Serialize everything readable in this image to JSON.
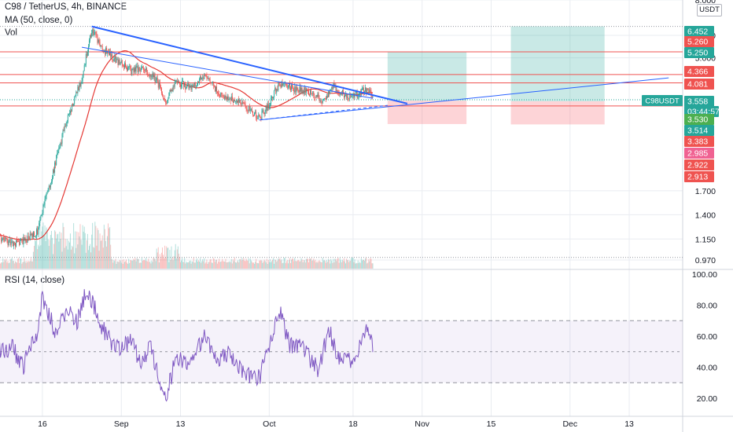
{
  "header": {
    "title": "C98 / TetherUS, 4h, BINANCE",
    "ma_label": "MA (50, close, 0)",
    "vol_label": "Vol",
    "currency_button": "USDT"
  },
  "rsi_header": {
    "label": "RSI (14, close)"
  },
  "colors": {
    "up": "#26a69a",
    "down": "#ef5350",
    "ma": "#e53935",
    "rsi": "#7e57c2",
    "trend": "#2962ff",
    "target_zone": "#26a69a",
    "stop_zone": "#f7525f",
    "grid": "#e9ecf1",
    "axis_text": "#131722"
  },
  "x_axis": {
    "labels": [
      "16",
      "Sep",
      "13",
      "Oct",
      "18",
      "Nov",
      "15",
      "Dec",
      "13"
    ]
  },
  "price_axis": {
    "ticks": [
      "8.000",
      "6.000",
      "5.000",
      "1.700",
      "1.400",
      "1.150",
      "0.970"
    ],
    "badges": [
      {
        "text": "6.452",
        "color": "#26a69a"
      },
      {
        "text": "5.260",
        "color": "#ef5350"
      },
      {
        "text": "5.250",
        "color": "#26a69a"
      },
      {
        "text": "4.366",
        "color": "#ef5350"
      },
      {
        "text": "4.081",
        "color": "#ef5350"
      },
      {
        "text": "3.558",
        "color": "#26a69a"
      },
      {
        "text": "03:44:57",
        "color": "#ffffff"
      },
      {
        "text": "3.530",
        "color": "#4caf50"
      },
      {
        "text": "3.514",
        "color": "#26a69a"
      },
      {
        "text": "3.383",
        "color": "#ef5350"
      },
      {
        "text": "2.985",
        "color": "#f06292"
      },
      {
        "text": "2.922",
        "color": "#ef5350"
      },
      {
        "text": "2.913",
        "color": "#ef5350"
      }
    ],
    "symbol_tag": "C98USDT"
  },
  "rsi_axis": {
    "ticks": [
      "100.00",
      "80.00",
      "60.00",
      "40.00",
      "20.00"
    ]
  },
  "chart_data": [
    {
      "type": "candlestick",
      "title": "C98 / TetherUS, 4h, BINANCE",
      "scale": "log",
      "ylim": [
        0.95,
        8.0
      ],
      "x_range": [
        "Aug 6",
        "Dec 21"
      ],
      "last_price": 3.558,
      "countdown": "03:44:57",
      "anchors": [
        [
          "Aug 6",
          1.2
        ],
        [
          "Aug 10",
          1.1
        ],
        [
          "Aug 13",
          1.15
        ],
        [
          "Aug 15",
          1.22
        ],
        [
          "Aug 18",
          1.9
        ],
        [
          "Aug 21",
          3.0
        ],
        [
          "Aug 24",
          4.2
        ],
        [
          "Aug 25",
          5.2
        ],
        [
          "Aug 26",
          6.3
        ],
        [
          "Aug 28",
          5.4
        ],
        [
          "Aug 31",
          4.9
        ],
        [
          "Sep 3",
          4.5
        ],
        [
          "Sep 5",
          4.6
        ],
        [
          "Sep 8",
          4.2
        ],
        [
          "Sep 10",
          3.5
        ],
        [
          "Sep 12",
          4.1
        ],
        [
          "Sep 15",
          3.95
        ],
        [
          "Sep 18",
          4.3
        ],
        [
          "Sep 21",
          3.7
        ],
        [
          "Sep 24",
          3.55
        ],
        [
          "Sep 27",
          3.3
        ],
        [
          "Sep 29",
          3.05
        ],
        [
          "Oct 1",
          3.45
        ],
        [
          "Oct 3",
          4.05
        ],
        [
          "Oct 6",
          3.9
        ],
        [
          "Oct 9",
          3.8
        ],
        [
          "Oct 12",
          3.55
        ],
        [
          "Oct 14",
          3.95
        ],
        [
          "Oct 17",
          3.65
        ],
        [
          "Oct 19",
          3.7
        ],
        [
          "Oct 21",
          3.9
        ],
        [
          "Oct 22",
          3.558
        ]
      ],
      "indicators": {
        "ma_period": 50,
        "ma_source": "close"
      },
      "horizontal_levels": [
        6.452,
        5.25,
        4.366,
        4.081,
        3.383
      ],
      "trendlines": [
        {
          "from": [
            "Aug 26",
            6.45
          ],
          "to": [
            "Oct 29",
            3.45
          ]
        },
        {
          "from": [
            "Aug 24",
            5.45
          ],
          "to": [
            "Oct 22",
            3.6
          ]
        },
        {
          "from": [
            "Sep 29",
            3.02
          ],
          "to": [
            "Dec 21",
            4.25
          ]
        },
        {
          "from": [
            "Sep 29",
            3.02
          ],
          "to": [
            "Oct 25",
            3.4
          ],
          "style": "dashed"
        }
      ],
      "positions": [
        {
          "side": "long",
          "x": [
            "Oct 25",
            "Nov 10"
          ],
          "entry": 3.53,
          "target": 5.25,
          "stop": 2.922
        },
        {
          "side": "long",
          "x": [
            "Nov 19",
            "Dec 8"
          ],
          "entry": 3.514,
          "target": 6.452,
          "stop": 2.913
        }
      ]
    },
    {
      "type": "line",
      "title": "RSI (14, close)",
      "ylim": [
        10,
        100
      ],
      "bands": [
        30,
        50,
        70
      ],
      "anchors": [
        [
          "Aug 6",
          50
        ],
        [
          "Aug 10",
          52
        ],
        [
          "Aug 12",
          40
        ],
        [
          "Aug 15",
          62
        ],
        [
          "Aug 16",
          85
        ],
        [
          "Aug 19",
          60
        ],
        [
          "Aug 21",
          80
        ],
        [
          "Aug 23",
          68
        ],
        [
          "Aug 25",
          92
        ],
        [
          "Aug 28",
          66
        ],
        [
          "Aug 31",
          52
        ],
        [
          "Sep 3",
          57
        ],
        [
          "Sep 5",
          42
        ],
        [
          "Sep 7",
          55
        ],
        [
          "Sep 9",
          26
        ],
        [
          "Sep 10",
          20
        ],
        [
          "Sep 12",
          45
        ],
        [
          "Sep 15",
          41
        ],
        [
          "Sep 18",
          62
        ],
        [
          "Sep 20",
          44
        ],
        [
          "Sep 23",
          49
        ],
        [
          "Sep 26",
          36
        ],
        [
          "Sep 29",
          33
        ],
        [
          "Oct 1",
          52
        ],
        [
          "Oct 3",
          78
        ],
        [
          "Oct 5",
          55
        ],
        [
          "Oct 8",
          52
        ],
        [
          "Oct 11",
          37
        ],
        [
          "Oct 13",
          65
        ],
        [
          "Oct 15",
          47
        ],
        [
          "Oct 18",
          42
        ],
        [
          "Oct 20",
          57
        ],
        [
          "Oct 21",
          68
        ],
        [
          "Oct 22",
          53
        ]
      ]
    },
    {
      "type": "bar",
      "title": "Vol",
      "description_values": "relative volume bars under price"
    }
  ]
}
